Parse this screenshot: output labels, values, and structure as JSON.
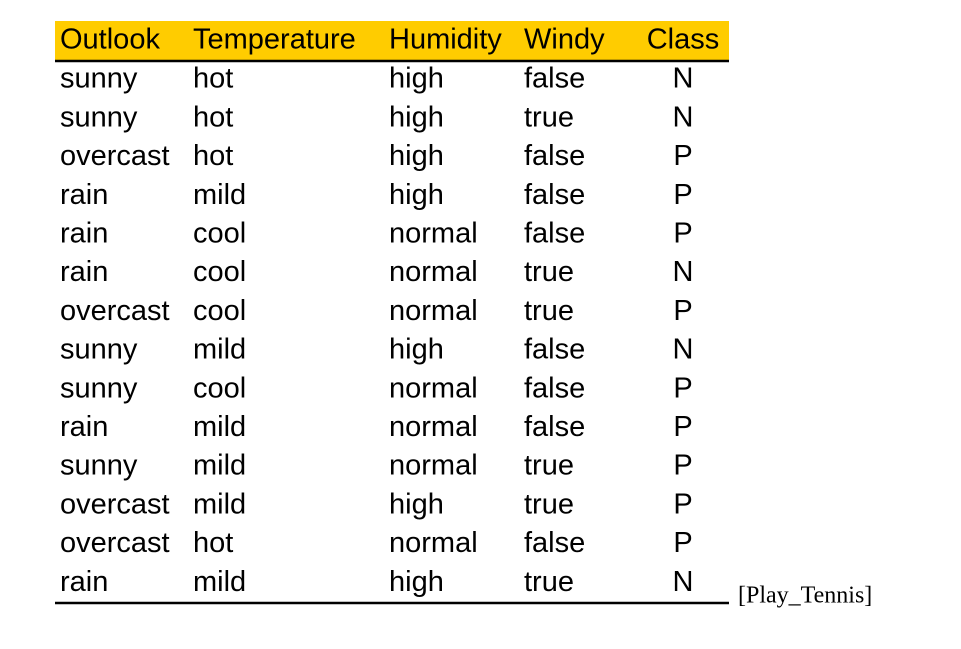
{
  "table": {
    "headers": [
      "Outlook",
      "Temperature",
      "Humidity",
      "Windy",
      "Class"
    ],
    "rows": [
      [
        "sunny",
        "hot",
        "high",
        "false",
        "N"
      ],
      [
        "sunny",
        "hot",
        "high",
        "true",
        "N"
      ],
      [
        "overcast",
        "hot",
        "high",
        "false",
        "P"
      ],
      [
        "rain",
        "mild",
        "high",
        "false",
        "P"
      ],
      [
        "rain",
        "cool",
        "normal",
        "false",
        "P"
      ],
      [
        "rain",
        "cool",
        "normal",
        "true",
        "N"
      ],
      [
        "overcast",
        "cool",
        "normal",
        "true",
        "P"
      ],
      [
        "sunny",
        "mild",
        "high",
        "false",
        "N"
      ],
      [
        "sunny",
        "cool",
        "normal",
        "false",
        "P"
      ],
      [
        "rain",
        "mild",
        "normal",
        "false",
        "P"
      ],
      [
        "sunny",
        "mild",
        "normal",
        "true",
        "P"
      ],
      [
        "overcast",
        "mild",
        "high",
        "true",
        "P"
      ],
      [
        "overcast",
        "hot",
        "normal",
        "false",
        "P"
      ],
      [
        "rain",
        "mild",
        "high",
        "true",
        "N"
      ]
    ],
    "caption": "[Play_Tennis]"
  }
}
